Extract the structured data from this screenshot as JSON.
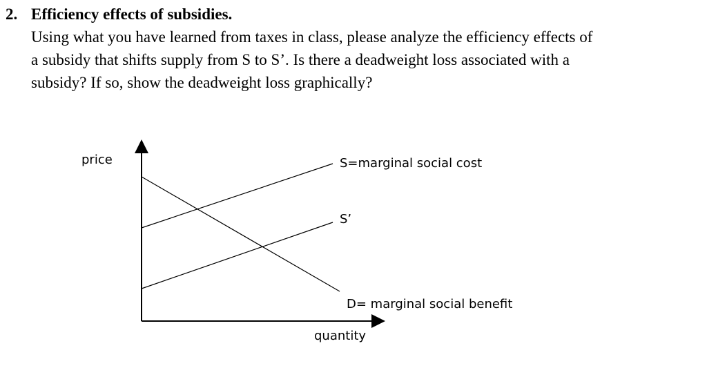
{
  "question": {
    "number": "2.",
    "title": "Efficiency effects of subsidies.",
    "body": [
      "Using what you have learned from taxes in class, please analyze the efficiency effects of",
      "a subsidy that shifts supply from S to S’. Is there a deadweight loss associated with a",
      "subsidy? If so, show the deadweight loss graphically?"
    ]
  },
  "diagram": {
    "y_axis_label": "price",
    "x_axis_label": "quantity",
    "supply_label": "S=marginal social cost",
    "subsidized_supply_label": "S’",
    "demand_label": "D= marginal social benefit"
  }
}
